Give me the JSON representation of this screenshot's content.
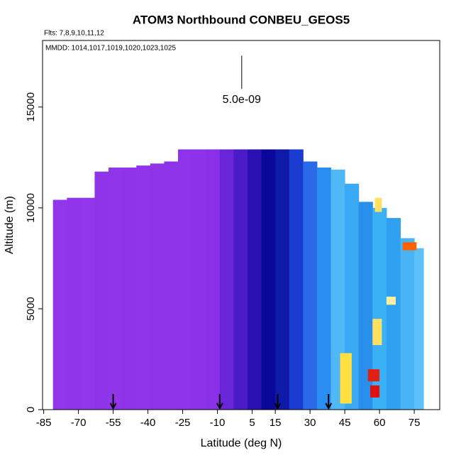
{
  "chart_data": {
    "type": "curtain",
    "title": "ATOM3 Northbound CONBEU_GEOS5",
    "flights_note": "Flts: 7,8,9,10,11,12",
    "dates_note": "MMDD: 1014,1017,1019,1020,1023,1025",
    "x_label": "Latitude (deg N)",
    "y_label": "Altitude (m)",
    "xlim": [
      -85.5,
      86
    ],
    "ylim": [
      0,
      18300
    ],
    "xticks": [
      -85,
      -70,
      -55,
      -40,
      -25,
      -10,
      5,
      15,
      30,
      45,
      60,
      75
    ],
    "yticks": [
      0,
      5000,
      10000,
      15000
    ],
    "scale_annotation": {
      "text": "5.0e-09",
      "lat": 0.5,
      "alt_top": 17550,
      "alt_bottom": 15900,
      "text_alt": 15350
    },
    "arrows_lat": [
      -55,
      -9,
      16,
      38
    ],
    "columns": {
      "lat_edges": [
        -81,
        -75,
        -69,
        -63,
        -57,
        -51,
        -45,
        -39,
        -33,
        -27,
        -21,
        -15,
        -9,
        -3,
        3,
        9,
        15,
        21,
        27,
        33,
        39,
        45,
        51,
        57,
        63,
        69,
        75,
        79
      ],
      "tops": [
        10400,
        10500,
        10500,
        11800,
        12000,
        12000,
        12100,
        12200,
        12300,
        12900,
        12900,
        12900,
        12900,
        12900,
        12900,
        12900,
        12900,
        12900,
        12300,
        12000,
        11900,
        11200,
        10300,
        10000,
        9500,
        8500,
        8000
      ],
      "colors": [
        "#9236ec",
        "#9135eb",
        "#9236ec",
        "#9034ea",
        "#9135eb",
        "#9034ea",
        "#9135eb",
        "#9034ea",
        "#8f33e9",
        "#8e33e9",
        "#8d32e8",
        "#8a30e8",
        "#6a25d8",
        "#4a1cc8",
        "#2a10b0",
        "#0a0898",
        "#0e1aa8",
        "#1a3ad0",
        "#2a6ae8",
        "#2a8ef0",
        "#50b8f5",
        "#3aa8f2",
        "#2890ea",
        "#3ab0f5",
        "#30a0f0",
        "#48b4f5",
        "#5ec0f8"
      ]
    },
    "patches": [
      {
        "lat": [
          43,
          48
        ],
        "alt": [
          300,
          2800
        ],
        "color": "#ffe040"
      },
      {
        "lat": [
          56,
          60
        ],
        "alt": [
          600,
          1200
        ],
        "color": "#e01010"
      },
      {
        "lat": [
          55,
          60
        ],
        "alt": [
          1400,
          2000
        ],
        "color": "#e02010"
      },
      {
        "lat": [
          57,
          61
        ],
        "alt": [
          3200,
          4500
        ],
        "color": "#ffe060"
      },
      {
        "lat": [
          70,
          76
        ],
        "alt": [
          7900,
          8300
        ],
        "color": "#ff6000"
      },
      {
        "lat": [
          63,
          67
        ],
        "alt": [
          5200,
          5600
        ],
        "color": "#fff0a0"
      },
      {
        "lat": [
          58,
          61
        ],
        "alt": [
          9800,
          10500
        ],
        "color": "#ffe060"
      }
    ]
  }
}
